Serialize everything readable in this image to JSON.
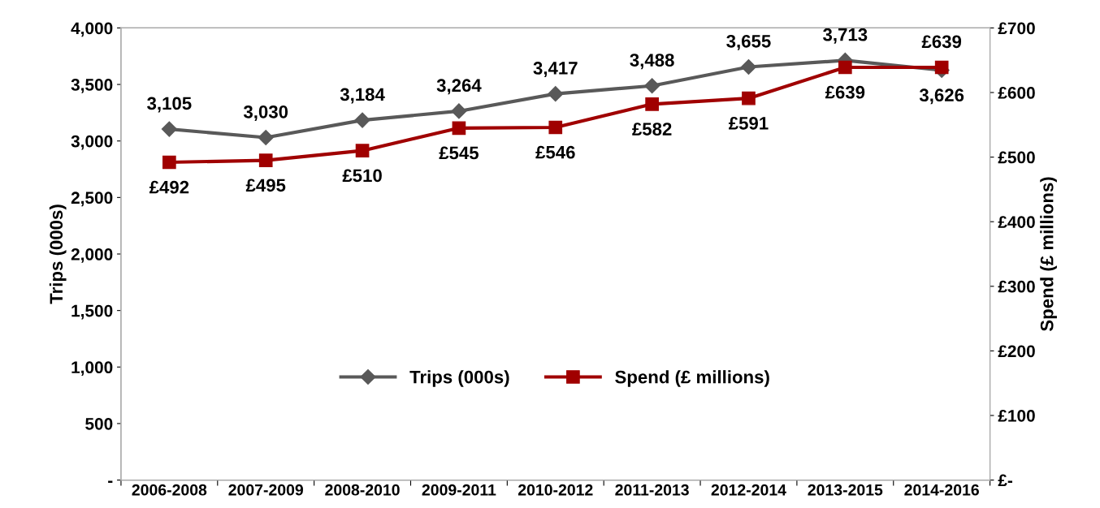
{
  "chart_data": {
    "type": "line",
    "ylabel": "Trips (000s)",
    "y2label": "Spend (£ millions)",
    "categories": [
      "2006-2008",
      "2007-2009",
      "2008-2010",
      "2009-2011",
      "2010-2012",
      "2011-2013",
      "2012-2014",
      "2013-2015",
      "2014-2016"
    ],
    "series": [
      {
        "name": "Trips (000s)",
        "color": "#595959",
        "marker": "diamond",
        "values": [
          3105,
          3030,
          3184,
          3264,
          3417,
          3488,
          3655,
          3713,
          3626
        ],
        "value_labels": [
          "3,105",
          "3,030",
          "3,184",
          "3,264",
          "3,417",
          "3,488",
          "3,655",
          "3,713",
          "3,626"
        ]
      },
      {
        "name": "Spend (£ millions)",
        "color": "#a00000",
        "marker": "square",
        "axis": "y2",
        "values": [
          492,
          495,
          510,
          545,
          546,
          582,
          591,
          639,
          639
        ],
        "value_labels": [
          "£492",
          "£495",
          "£510",
          "£545",
          "£546",
          "£582",
          "£591",
          "£639",
          "£639"
        ]
      }
    ],
    "ylim": [
      0,
      4000
    ],
    "yticks": [
      {
        "value": 0,
        "label": "-"
      },
      {
        "value": 500,
        "label": "500"
      },
      {
        "value": 1000,
        "label": "1,000"
      },
      {
        "value": 1500,
        "label": "1,500"
      },
      {
        "value": 2000,
        "label": "2,000"
      },
      {
        "value": 2500,
        "label": "2,500"
      },
      {
        "value": 3000,
        "label": "3,000"
      },
      {
        "value": 3500,
        "label": "3,500"
      },
      {
        "value": 4000,
        "label": "4,000"
      }
    ],
    "y2lim": [
      0,
      700
    ],
    "y2ticks": [
      {
        "value": 0,
        "label": "£-"
      },
      {
        "value": 100,
        "label": "£100"
      },
      {
        "value": 200,
        "label": "£200"
      },
      {
        "value": 300,
        "label": "£300"
      },
      {
        "value": 400,
        "label": "£400"
      },
      {
        "value": 500,
        "label": "£500"
      },
      {
        "value": 600,
        "label": "£600"
      },
      {
        "value": 700,
        "label": "£700"
      }
    ],
    "grid": false,
    "legend": "bottom",
    "line_style": "solid"
  }
}
